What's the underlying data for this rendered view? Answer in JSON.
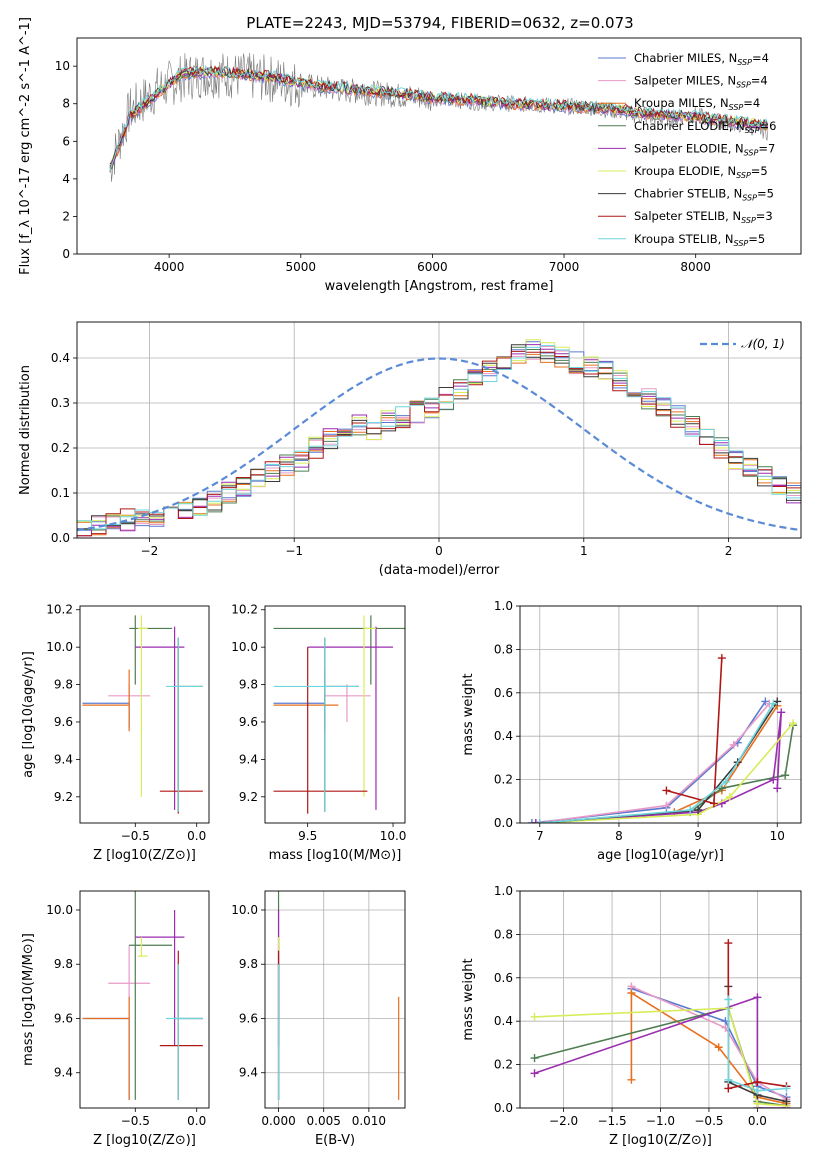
{
  "figure_title": "PLATE=2243, MJD=53794, FIBERID=0632, z=0.073",
  "models": [
    {
      "name": "Chabrier MILES",
      "nssp": "4",
      "color": "#5b7bd0"
    },
    {
      "name": "Salpeter MILES",
      "nssp": "4",
      "color": "#e89ac7"
    },
    {
      "name": "Kroupa MILES",
      "nssp": "4",
      "color": "#e6701f"
    },
    {
      "name": "Chabrier ELODIE",
      "nssp": "6",
      "color": "#4f7d52"
    },
    {
      "name": "Salpeter ELODIE",
      "nssp": "7",
      "color": "#9b2db0"
    },
    {
      "name": "Kroupa ELODIE",
      "nssp": "5",
      "color": "#d8ec5a"
    },
    {
      "name": "Chabrier STELIB",
      "nssp": "5",
      "color": "#3a3a3a"
    },
    {
      "name": "Salpeter STELIB",
      "nssp": "3",
      "color": "#b01717"
    },
    {
      "name": "Kroupa STELIB",
      "nssp": "5",
      "color": "#6ed6dd"
    }
  ],
  "legend_prefix": "N",
  "legend_sub": "SSP",
  "spectrum_color": "#7a7a7a",
  "normal_color": "#5b8bd6",
  "chart_data": [
    {
      "id": "spectrum",
      "type": "line",
      "xlabel": "wavelength [Angstrom, rest frame]",
      "ylabel": "Flux [f_λ 10^-17 erg cm^-2 s^-1 A^-1]",
      "xlim": [
        3300,
        8800
      ],
      "ylim": [
        0,
        11.5
      ],
      "xticks": [
        4000,
        5000,
        6000,
        7000,
        8000
      ],
      "yticks": [
        0,
        2,
        4,
        6,
        8,
        10
      ],
      "legend_position": "top-right",
      "observed": {
        "x": [
          3550,
          3700,
          3900,
          4100,
          4300,
          4500,
          4800,
          5000,
          5200,
          5500,
          5800,
          6000,
          6300,
          6600,
          6900,
          7200,
          7400,
          7600,
          7800,
          8000,
          8200,
          8400,
          8550
        ],
        "y": [
          4.6,
          7.6,
          8.7,
          9.4,
          9.6,
          9.5,
          9.3,
          9.0,
          8.8,
          8.6,
          8.4,
          8.3,
          8.1,
          8.0,
          7.9,
          7.8,
          7.6,
          7.3,
          7.2,
          7.4,
          7.0,
          6.8,
          6.5
        ]
      },
      "model_continuum": {
        "x": [
          3550,
          3700,
          3900,
          4100,
          4300,
          4500,
          4800,
          5000,
          5200,
          5500,
          5800,
          6000,
          6300,
          6600,
          6900,
          7200,
          7400,
          7600,
          7800,
          8000,
          8200,
          8400,
          8550
        ],
        "y": [
          4.5,
          7.3,
          8.5,
          9.6,
          9.7,
          9.6,
          9.4,
          9.1,
          8.9,
          8.7,
          8.5,
          8.3,
          8.2,
          8.0,
          7.9,
          7.8,
          7.7,
          7.5,
          7.4,
          7.3,
          7.1,
          7.0,
          6.8
        ]
      }
    },
    {
      "id": "residuals",
      "type": "step",
      "xlabel": "(data-model)/error",
      "ylabel": "Normed distribution",
      "xlim": [
        -2.5,
        2.5
      ],
      "ylim": [
        0,
        0.48
      ],
      "xticks": [
        -2,
        -1,
        0,
        1,
        2
      ],
      "yticks": [
        0.0,
        0.1,
        0.2,
        0.3,
        0.4
      ],
      "grid": true,
      "legend_position": "top-right",
      "normal_label": "𝒩(0, 1)",
      "bin_width": 0.1,
      "bin_start": -2.5,
      "base_histogram": [
        0.02,
        0.03,
        0.035,
        0.04,
        0.045,
        0.05,
        0.055,
        0.06,
        0.07,
        0.08,
        0.1,
        0.11,
        0.13,
        0.15,
        0.16,
        0.17,
        0.2,
        0.22,
        0.23,
        0.25,
        0.24,
        0.26,
        0.27,
        0.28,
        0.29,
        0.31,
        0.33,
        0.35,
        0.37,
        0.38,
        0.41,
        0.42,
        0.41,
        0.4,
        0.39,
        0.38,
        0.37,
        0.35,
        0.33,
        0.31,
        0.29,
        0.27,
        0.25,
        0.23,
        0.2,
        0.17,
        0.16,
        0.14,
        0.12,
        0.1
      ]
    },
    {
      "id": "age-vs-Z",
      "type": "errorbar",
      "xlabel": "Z [log10(Z/Z⊙)]",
      "ylabel": "age  [log10(age/yr)]",
      "xlim": [
        -0.95,
        0.1
      ],
      "ylim": [
        9.06,
        10.22
      ],
      "xticks": [
        -0.5,
        0.0
      ],
      "xticklabels": [
        "−0.5",
        "0.0"
      ],
      "yticks": [
        9.2,
        9.4,
        9.6,
        9.8,
        10.0,
        10.2
      ]
    },
    {
      "id": "age-vs-mass",
      "type": "errorbar",
      "xlabel": "mass [log10(M/M⊙)]",
      "ylabel": "",
      "xlim": [
        9.25,
        10.07
      ],
      "ylim": [
        9.06,
        10.22
      ],
      "xticks": [
        9.5,
        10.0
      ],
      "xticklabels": [
        "9.5",
        "10.0"
      ],
      "yticks": [
        9.2,
        9.4,
        9.6,
        9.8,
        10.0,
        10.2
      ]
    },
    {
      "id": "weight-vs-age",
      "type": "line",
      "xlabel": "age  [log10(age/yr)]",
      "ylabel": "mass weight",
      "xlim": [
        6.75,
        10.3
      ],
      "ylim": [
        0,
        1.0
      ],
      "xticks": [
        7,
        8,
        9,
        10
      ],
      "yticks": [
        0.0,
        0.2,
        0.4,
        0.6,
        0.8,
        1.0
      ],
      "grid": true,
      "series": [
        {
          "model": 0,
          "x": [
            6.9,
            8.6,
            9.5,
            9.85
          ],
          "y": [
            0.0,
            0.07,
            0.37,
            0.56
          ]
        },
        {
          "model": 1,
          "x": [
            6.95,
            8.6,
            9.45,
            9.9
          ],
          "y": [
            0.0,
            0.08,
            0.36,
            0.55
          ]
        },
        {
          "model": 2,
          "x": [
            7.0,
            8.7,
            9.3,
            10.0
          ],
          "y": [
            0.0,
            0.05,
            0.15,
            0.54
          ]
        },
        {
          "model": 3,
          "x": [
            7.0,
            8.9,
            9.3,
            10.1,
            10.2
          ],
          "y": [
            0.0,
            0.05,
            0.16,
            0.22,
            0.45
          ]
        },
        {
          "model": 4,
          "x": [
            6.95,
            9.0,
            9.3,
            9.95,
            10.05,
            10.0
          ],
          "y": [
            0.0,
            0.05,
            0.09,
            0.2,
            0.51,
            0.16
          ]
        },
        {
          "model": 5,
          "x": [
            7.0,
            9.0,
            9.4,
            10.2
          ],
          "y": [
            0.0,
            0.04,
            0.12,
            0.46
          ]
        },
        {
          "model": 6,
          "x": [
            7.0,
            9.0,
            9.5,
            10.0
          ],
          "y": [
            0.0,
            0.06,
            0.28,
            0.56
          ]
        },
        {
          "model": 7,
          "x": [
            8.6,
            9.2,
            9.3
          ],
          "y": [
            0.15,
            0.09,
            0.76
          ]
        },
        {
          "model": 8,
          "x": [
            7.0,
            8.9,
            9.35,
            9.95
          ],
          "y": [
            0.0,
            0.06,
            0.19,
            0.55
          ]
        }
      ]
    },
    {
      "id": "mass-vs-Z",
      "type": "errorbar",
      "xlabel": "Z [log10(Z/Z⊙)]",
      "ylabel": "mass [log10(M/M⊙)]",
      "xlim": [
        -0.95,
        0.1
      ],
      "ylim": [
        9.27,
        10.07
      ],
      "xticks": [
        -0.5,
        0.0
      ],
      "xticklabels": [
        "−0.5",
        "0.0"
      ],
      "yticks": [
        9.4,
        9.6,
        9.8,
        10.0
      ]
    },
    {
      "id": "mass-vs-EBV",
      "type": "errorbar",
      "xlabel": "E(B-V)",
      "ylabel": "",
      "xlim": [
        -0.0015,
        0.014
      ],
      "ylim": [
        9.27,
        10.07
      ],
      "xticks": [
        0.0,
        0.005,
        0.01
      ],
      "xticklabels": [
        "0.000",
        "0.005",
        "0.010"
      ],
      "yticks": [
        9.4,
        9.6,
        9.8,
        10.0
      ],
      "grid": true
    },
    {
      "id": "weight-vs-Z",
      "type": "line",
      "xlabel": "Z [log10(Z/Z⊙)]",
      "ylabel": "mass weight",
      "xlim": [
        -2.45,
        0.45
      ],
      "ylim": [
        0,
        1.0
      ],
      "xticks": [
        -2.0,
        -1.5,
        -1.0,
        -0.5,
        0.0
      ],
      "xticklabels": [
        "−2.0",
        "−1.5",
        "−1.0",
        "−0.5",
        "0.0"
      ],
      "yticks": [
        0.0,
        0.2,
        0.4,
        0.6,
        0.8,
        1.0
      ],
      "grid": true,
      "series": [
        {
          "model": 0,
          "x": [
            -1.3,
            -0.33,
            0.0,
            0.3
          ],
          "y": [
            0.55,
            0.4,
            0.1,
            0.05
          ]
        },
        {
          "model": 1,
          "x": [
            -1.3,
            -0.33,
            0.0,
            0.3
          ],
          "y": [
            0.56,
            0.37,
            0.12,
            0.04
          ]
        },
        {
          "model": 2,
          "x": [
            -1.3,
            -1.3,
            -0.4,
            0.0,
            0.3
          ],
          "y": [
            0.13,
            0.53,
            0.28,
            0.05,
            0.02
          ]
        },
        {
          "model": 3,
          "x": [
            -2.3,
            -0.3,
            0.0,
            0.3
          ],
          "y": [
            0.23,
            0.46,
            0.03,
            0.01
          ]
        },
        {
          "model": 4,
          "x": [
            -2.3,
            0.0,
            0.0,
            0.3
          ],
          "y": [
            0.16,
            0.51,
            0.0,
            0.0
          ]
        },
        {
          "model": 5,
          "x": [
            -2.3,
            -0.3,
            0.0,
            0.3
          ],
          "y": [
            0.42,
            0.46,
            0.02,
            0.01
          ]
        },
        {
          "model": 6,
          "x": [
            -0.3,
            -0.3,
            0.0,
            0.3
          ],
          "y": [
            0.56,
            0.12,
            0.06,
            0.03
          ]
        },
        {
          "model": 7,
          "x": [
            -0.3,
            -0.3,
            0.0,
            0.3
          ],
          "y": [
            0.76,
            0.09,
            0.12,
            0.1
          ]
        },
        {
          "model": 8,
          "x": [
            -0.3,
            -0.3,
            0.0,
            0.3
          ],
          "y": [
            0.5,
            0.13,
            0.08,
            0.09
          ]
        }
      ]
    }
  ],
  "estimates": [
    {
      "Z": -0.55,
      "Zerr": [
        -0.93,
        -0.55
      ],
      "age": 9.7,
      "ageerr": [
        9.57,
        9.7
      ],
      "mass": 9.6,
      "masserr": [
        9.3,
        9.6
      ],
      "ebv": 0.0,
      "ebv_mass": 9.6
    },
    {
      "Z": -0.55,
      "Zerr": [
        -0.72,
        -0.38
      ],
      "age": 9.74,
      "ageerr": [
        9.6,
        9.8
      ],
      "mass": 9.73,
      "masserr": [
        9.6,
        9.87
      ],
      "ebv": 0.0,
      "ebv_mass": 9.73
    },
    {
      "Z": -0.55,
      "Zerr": [
        -0.93,
        -0.55
      ],
      "age": 9.69,
      "ageerr": [
        9.55,
        9.88
      ],
      "mass": 9.6,
      "masserr": [
        9.3,
        9.68
      ],
      "ebv": 0.0133,
      "ebv_mass": 9.6
    },
    {
      "Z": -0.5,
      "Zerr": [
        -0.55,
        -0.2
      ],
      "age": 10.1,
      "ageerr": [
        9.8,
        10.17
      ],
      "mass": 9.87,
      "masserr": [
        9.3,
        10.1
      ],
      "ebv": 0.0,
      "ebv_mass": 9.87
    },
    {
      "Z": -0.18,
      "Zerr": [
        -0.5,
        -0.1
      ],
      "age": 10.0,
      "ageerr": [
        9.13,
        10.11
      ],
      "mass": 9.9,
      "masserr": [
        9.5,
        10.0
      ],
      "ebv": 0.0,
      "ebv_mass": 9.9
    },
    {
      "Z": -0.45,
      "Zerr": [
        -0.48,
        -0.4
      ],
      "age": 10.1,
      "ageerr": [
        9.2,
        10.17
      ],
      "mass": 9.83,
      "masserr": [
        9.83,
        9.9
      ],
      "ebv": 0.0,
      "ebv_mass": 9.83
    },
    {
      "Z": -0.15,
      "Zerr": [
        -0.18,
        0.05
      ],
      "age": 9.79,
      "ageerr": [
        9.12,
        10.05
      ],
      "mass": 9.6,
      "masserr": [
        9.6,
        9.8
      ],
      "ebv": 0.0,
      "ebv_mass": 9.6
    },
    {
      "Z": -0.15,
      "Zerr": [
        -0.3,
        0.05
      ],
      "age": 9.23,
      "ageerr": [
        9.11,
        10.0
      ],
      "mass": 9.5,
      "masserr": [
        9.3,
        9.85
      ],
      "ebv": 0.0,
      "ebv_mass": 9.5
    },
    {
      "Z": -0.15,
      "Zerr": [
        -0.25,
        0.05
      ],
      "age": 9.79,
      "ageerr": [
        9.12,
        10.05
      ],
      "mass": 9.6,
      "masserr": [
        9.3,
        9.8
      ],
      "ebv": 0.0,
      "ebv_mass": 9.6
    }
  ]
}
